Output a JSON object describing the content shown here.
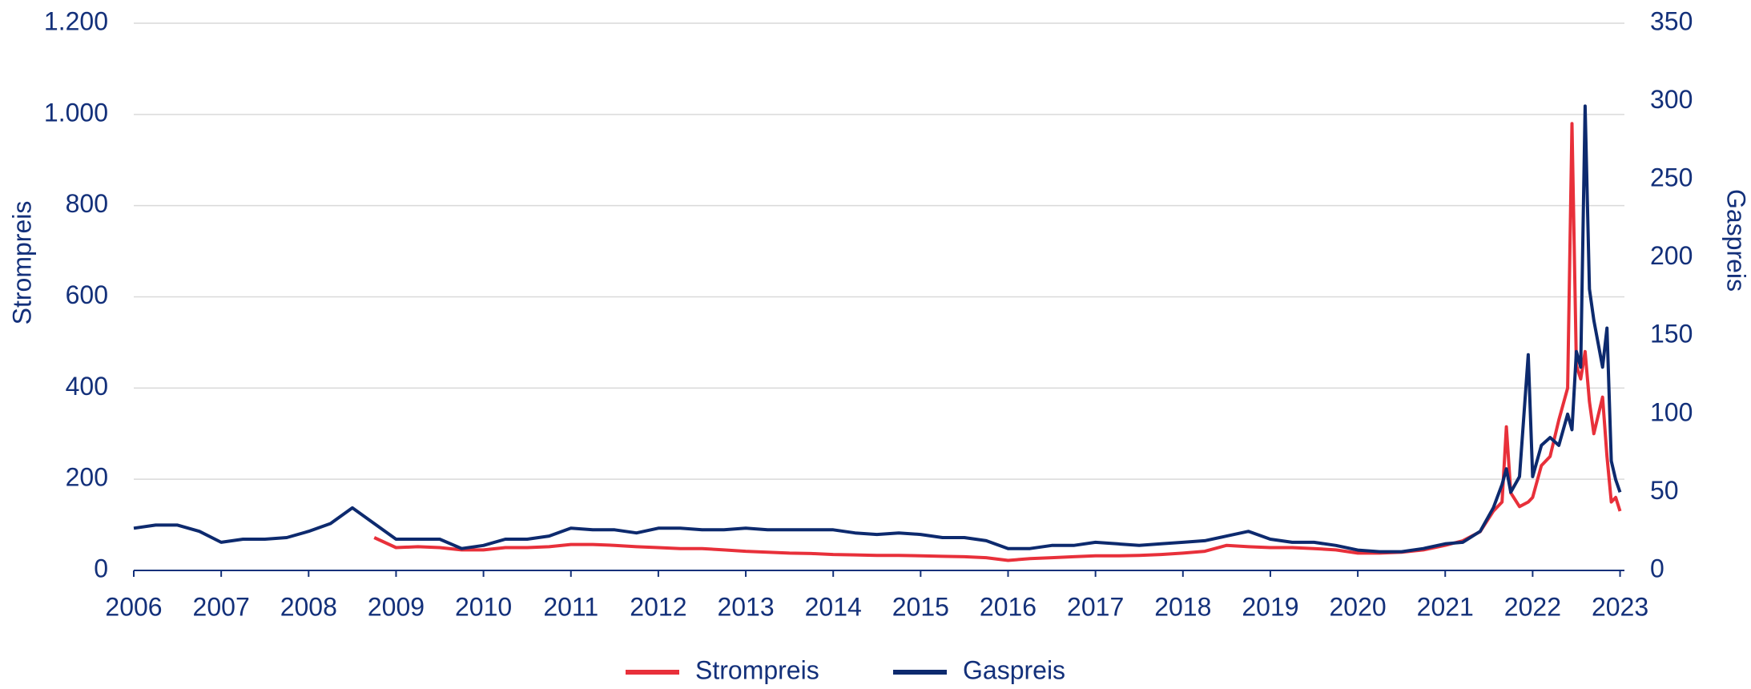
{
  "chart_data": {
    "type": "line",
    "x": [
      2006,
      2006.25,
      2006.5,
      2006.75,
      2007,
      2007.25,
      2007.5,
      2007.75,
      2008,
      2008.25,
      2008.5,
      2008.75,
      2009,
      2009.25,
      2009.5,
      2009.75,
      2010,
      2010.25,
      2010.5,
      2010.75,
      2011,
      2011.25,
      2011.5,
      2011.75,
      2012,
      2012.25,
      2012.5,
      2012.75,
      2013,
      2013.25,
      2013.5,
      2013.75,
      2014,
      2014.25,
      2014.5,
      2014.75,
      2015,
      2015.25,
      2015.5,
      2015.75,
      2016,
      2016.25,
      2016.5,
      2016.75,
      2017,
      2017.25,
      2017.5,
      2017.75,
      2018,
      2018.25,
      2018.5,
      2018.75,
      2019,
      2019.25,
      2019.5,
      2019.75,
      2020,
      2020.25,
      2020.5,
      2020.75,
      2021,
      2021.2,
      2021.4,
      2021.55,
      2021.65,
      2021.7,
      2021.75,
      2021.85,
      2021.95,
      2022,
      2022.1,
      2022.2,
      2022.3,
      2022.4,
      2022.45,
      2022.5,
      2022.55,
      2022.6,
      2022.65,
      2022.7,
      2022.8,
      2022.85,
      2022.9,
      2022.95,
      2023
    ],
    "series": [
      {
        "name": "Strompreis",
        "color": "#e8303a",
        "values": [
          null,
          null,
          null,
          null,
          null,
          null,
          null,
          null,
          null,
          null,
          null,
          72,
          50,
          52,
          50,
          45,
          45,
          50,
          50,
          52,
          57,
          57,
          55,
          52,
          50,
          48,
          48,
          45,
          42,
          40,
          38,
          37,
          35,
          34,
          33,
          33,
          32,
          31,
          30,
          28,
          22,
          26,
          28,
          30,
          32,
          32,
          33,
          35,
          38,
          42,
          55,
          52,
          50,
          50,
          48,
          45,
          38,
          38,
          40,
          45,
          55,
          65,
          85,
          130,
          150,
          315,
          170,
          140,
          150,
          160,
          230,
          250,
          330,
          400,
          980,
          450,
          420,
          480,
          370,
          300,
          380,
          250,
          150,
          160,
          130
        ]
      },
      {
        "name": "Gaspreis",
        "color": "#0d2a6e",
        "axis": "y2",
        "values": [
          27,
          29,
          29,
          25,
          18,
          20,
          20,
          21,
          25,
          30,
          40,
          30,
          20,
          20,
          20,
          14,
          16,
          20,
          20,
          22,
          27,
          26,
          26,
          24,
          27,
          27,
          26,
          26,
          27,
          26,
          26,
          26,
          26,
          24,
          23,
          24,
          23,
          21,
          21,
          19,
          14,
          14,
          16,
          16,
          18,
          17,
          16,
          17,
          18,
          19,
          22,
          25,
          20,
          18,
          18,
          16,
          13,
          12,
          12,
          14,
          17,
          18,
          25,
          40,
          55,
          65,
          50,
          60,
          138,
          60,
          80,
          85,
          80,
          100,
          90,
          140,
          130,
          297,
          180,
          160,
          130,
          155,
          70,
          58,
          50
        ]
      }
    ],
    "ylabel": "Strompreis",
    "y2label": "Gaspreis",
    "xlim": [
      2006,
      2023.05
    ],
    "xticks": [
      2006,
      2007,
      2008,
      2009,
      2010,
      2011,
      2012,
      2013,
      2014,
      2015,
      2016,
      2017,
      2018,
      2019,
      2020,
      2021,
      2022,
      2023
    ],
    "ylim": [
      0,
      1200
    ],
    "yticks": [
      0,
      200,
      400,
      600,
      800,
      {
        "value": 1000,
        "label": "1.000"
      },
      {
        "value": 1200,
        "label": "1.200"
      }
    ],
    "y2lim": [
      0,
      350
    ],
    "y2ticks": [
      0,
      50,
      100,
      150,
      200,
      250,
      300,
      350
    ],
    "grid": true
  }
}
